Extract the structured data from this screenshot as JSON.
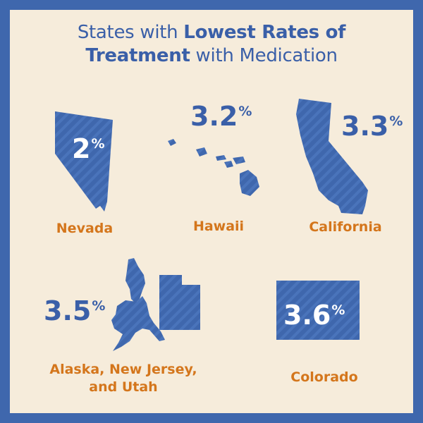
{
  "title": {
    "pre": "States with ",
    "bold1": "Lowest Rates of",
    "bold2": "Treatment",
    "post": " with Medication"
  },
  "states": {
    "nevada": {
      "value": "2",
      "unit": "%",
      "label": "Nevada"
    },
    "hawaii": {
      "value": "3.2",
      "unit": "%",
      "label": "Hawaii"
    },
    "california": {
      "value": "3.3",
      "unit": "%",
      "label": "California"
    },
    "group": {
      "value": "3.5",
      "unit": "%",
      "label_line1": "Alaska, New Jersey,",
      "label_line2": "and Utah"
    },
    "colorado": {
      "value": "3.6",
      "unit": "%",
      "label": "Colorado"
    }
  },
  "colors": {
    "frame": "#3f67ad",
    "background": "#f6ecdb",
    "map_fill": "#3f67ad",
    "title": "#3a5fa8",
    "label": "#d4761c"
  },
  "icons": [
    "nevada-map-icon",
    "hawaii-map-icon",
    "california-map-icon",
    "alaska-map-icon",
    "new-jersey-map-icon",
    "utah-map-icon",
    "colorado-map-icon"
  ]
}
